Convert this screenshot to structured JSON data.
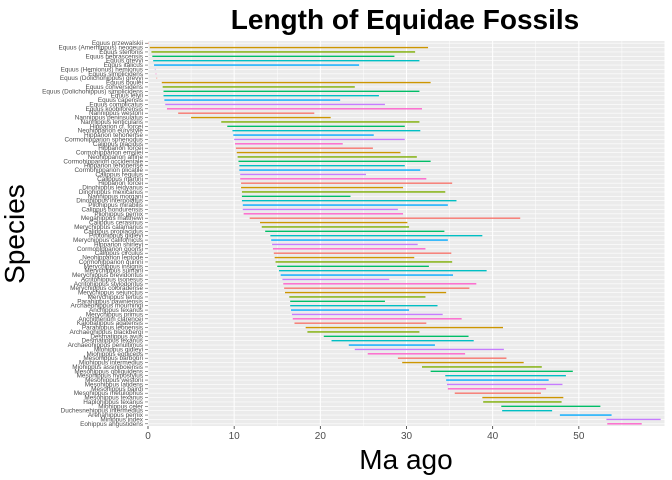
{
  "chart_data": {
    "type": "range",
    "title": "Length of Equidae Fossils",
    "xlabel": "Ma ago",
    "ylabel": "Species",
    "xlim": [
      0,
      60
    ],
    "xticks": [
      0,
      10,
      20,
      30,
      40,
      50
    ],
    "grid": true,
    "legend": "none",
    "species": [
      {
        "label": "Equus przewalskii",
        "start": 0,
        "end": 0
      },
      {
        "label": "Equus (Amerhippus) neogeus",
        "start": 0.2,
        "end": 32.5
      },
      {
        "label": "Equus stenonis",
        "start": 0.4,
        "end": 31
      },
      {
        "label": "Equus nebrascensis",
        "start": 0.5,
        "end": 28.6
      },
      {
        "label": "Equus grevyi",
        "start": 0.6,
        "end": 31.5
      },
      {
        "label": "Equus italicus",
        "start": 0.7,
        "end": 24.5
      },
      {
        "label": "Equus (Hemionus) hemionus",
        "start": 0.8,
        "end": 0.8
      },
      {
        "label": "Equus simplicidens",
        "start": 0.9,
        "end": 0.9
      },
      {
        "label": "Equus (Dolichohippus) grevyi",
        "start": 1,
        "end": 1
      },
      {
        "label": "Equus boulei",
        "start": 1.6,
        "end": 32.8
      },
      {
        "label": "Equus conversidens",
        "start": 1.7,
        "end": 24
      },
      {
        "label": "Equus (Dolichohippus) simplicidens",
        "start": 1.8,
        "end": 31.5
      },
      {
        "label": "Equus lelyii",
        "start": 1.8,
        "end": 26.8
      },
      {
        "label": "Equus capensis",
        "start": 1.9,
        "end": 22.3
      },
      {
        "label": "Equus complicatus",
        "start": 2,
        "end": 27.5
      },
      {
        "label": "Equus koobiforensis",
        "start": 2.2,
        "end": 31.8
      },
      {
        "label": "Nannippus westoni",
        "start": 3.5,
        "end": 19.3
      },
      {
        "label": "Nannippus peninsulatus",
        "start": 5,
        "end": 21.2
      },
      {
        "label": "Nannippus lenticularis",
        "start": 8.5,
        "end": 31.5
      },
      {
        "label": "Hipparion cf. forcei",
        "start": 9.2,
        "end": 29.8
      },
      {
        "label": "Neohipparion eurystyle",
        "start": 9.8,
        "end": 31.6
      },
      {
        "label": "Hipparion tehonense",
        "start": 9.9,
        "end": 26.2
      },
      {
        "label": "Cormohipparion sphenodus",
        "start": 10,
        "end": 29.8
      },
      {
        "label": "Calippus placidus",
        "start": 10.1,
        "end": 22.6
      },
      {
        "label": "Hipparion forcei",
        "start": 10.2,
        "end": 26.1
      },
      {
        "label": "Cormohipparion emsliei",
        "start": 10.3,
        "end": 29.3
      },
      {
        "label": "Neohipparion affine",
        "start": 10.4,
        "end": 31.2
      },
      {
        "label": "Cormohipparion occidentale",
        "start": 10.5,
        "end": 32.8
      },
      {
        "label": "Hipparion tehonense",
        "start": 10.6,
        "end": 29.8
      },
      {
        "label": "Cormohipparion plicatile",
        "start": 10.6,
        "end": 31.6
      },
      {
        "label": "Calippus regulus",
        "start": 10.7,
        "end": 25.3
      },
      {
        "label": "Calippus martini",
        "start": 10.7,
        "end": 32.3
      },
      {
        "label": "Hipparion forcei",
        "start": 10.8,
        "end": 35.3
      },
      {
        "label": "Dinohippus leidyanus",
        "start": 10.8,
        "end": 29.6
      },
      {
        "label": "Dinohippus mexicanus",
        "start": 10.9,
        "end": 34.5
      },
      {
        "label": "Nannippus morgani",
        "start": 10.9,
        "end": 23.5
      },
      {
        "label": "Dinohippus interpolatus",
        "start": 10.9,
        "end": 35.8
      },
      {
        "label": "Pliohippus mirabilis",
        "start": 11,
        "end": 34.8
      },
      {
        "label": "Calippus hondurensis",
        "start": 11,
        "end": 29
      },
      {
        "label": "Pliohippus pernix",
        "start": 11.1,
        "end": 29.6
      },
      {
        "label": "Megahippus matthewi",
        "start": 11.8,
        "end": 43.2
      },
      {
        "label": "Calippus cerasinus",
        "start": 13,
        "end": 30.1
      },
      {
        "label": "Merychippus calamarius",
        "start": 13.2,
        "end": 30.3
      },
      {
        "label": "Calippus proplacidus",
        "start": 13.6,
        "end": 34.4
      },
      {
        "label": "Protohippus gidleyi",
        "start": 14.2,
        "end": 38.8
      },
      {
        "label": "Merychippus californicus",
        "start": 14.3,
        "end": 34.8
      },
      {
        "label": "Hipparion shirleyi",
        "start": 14.4,
        "end": 31.3
      },
      {
        "label": "Cormohipparion goorisi",
        "start": 14.5,
        "end": 32.2
      },
      {
        "label": "Calippus circulus",
        "start": 14.6,
        "end": 35.2
      },
      {
        "label": "Neohipparion leptode",
        "start": 14.7,
        "end": 30.9
      },
      {
        "label": "Cormohipparion quinni",
        "start": 14.8,
        "end": 35.3
      },
      {
        "label": "Merychippus insignis",
        "start": 15,
        "end": 32.6
      },
      {
        "label": "Merychippus sumani",
        "start": 15.2,
        "end": 39.3
      },
      {
        "label": "Merychippus brevidontus",
        "start": 15.4,
        "end": 35.4
      },
      {
        "label": "Acritohippus isonesus",
        "start": 15.6,
        "end": 28
      },
      {
        "label": "Acritohippus stylodontus",
        "start": 15.7,
        "end": 38.1
      },
      {
        "label": "Merychippus coloradense",
        "start": 15.8,
        "end": 37.3
      },
      {
        "label": "Merychippus sejunctus",
        "start": 15.9,
        "end": 34.6
      },
      {
        "label": "Merychippus tertius",
        "start": 16.4,
        "end": 32.2
      },
      {
        "label": "Parahippus pawniensis",
        "start": 16.5,
        "end": 27.5
      },
      {
        "label": "Archaeohippus mourningi",
        "start": 16.5,
        "end": 33.6
      },
      {
        "label": "Anchippus texanus",
        "start": 16.6,
        "end": 30.3
      },
      {
        "label": "Merychippus primus",
        "start": 16.7,
        "end": 34.2
      },
      {
        "label": "Anchitherium clarencei",
        "start": 16.8,
        "end": 36.4
      },
      {
        "label": "Kalobatippus agatensis",
        "start": 17,
        "end": 32.3
      },
      {
        "label": "Parahippus leonensis",
        "start": 18.3,
        "end": 41.2
      },
      {
        "label": "Archaeohippus blackbergi",
        "start": 18.5,
        "end": 31.5
      },
      {
        "label": "Desmatippus avus",
        "start": 20.4,
        "end": 37.2
      },
      {
        "label": "Desmatippus texanus",
        "start": 21.3,
        "end": 37.8
      },
      {
        "label": "Archaeohippus penultimus",
        "start": 23.3,
        "end": 33.3
      },
      {
        "label": "Miohippus gidleyi",
        "start": 24,
        "end": 41.3
      },
      {
        "label": "Miohippus equiceps",
        "start": 25.5,
        "end": 36.8
      },
      {
        "label": "Mesohippus barbouri",
        "start": 29,
        "end": 41.6
      },
      {
        "label": "Miohippus intermedius",
        "start": 29.5,
        "end": 43.6
      },
      {
        "label": "Miohippus assiniboiensis",
        "start": 31.8,
        "end": 45.7
      },
      {
        "label": "Mesohippus obliquidens",
        "start": 32.8,
        "end": 49.3
      },
      {
        "label": "Mesohippus hypostylus",
        "start": 34.5,
        "end": 48.5
      },
      {
        "label": "Mesohippus westoni",
        "start": 34.6,
        "end": 46.5
      },
      {
        "label": "Mesohippus latidens",
        "start": 34.7,
        "end": 48.1
      },
      {
        "label": "Mesohippus bairdi",
        "start": 34.8,
        "end": 46.2
      },
      {
        "label": "Mesohippus metulophus",
        "start": 35.6,
        "end": 45.6
      },
      {
        "label": "Mesohippus texanus",
        "start": 38.8,
        "end": 48.2
      },
      {
        "label": "Haplohippus texanus",
        "start": 38.9,
        "end": 48
      },
      {
        "label": "Miohippus celer",
        "start": 41,
        "end": 52.5
      },
      {
        "label": "Duchesnehippus intermedius",
        "start": 41.1,
        "end": 46.9
      },
      {
        "label": "Arenahippus pernix",
        "start": 47.8,
        "end": 53.8
      },
      {
        "label": "Minippus index",
        "start": 53.2,
        "end": 59.5
      },
      {
        "label": "Eohippus angustidens",
        "start": 53.3,
        "end": 57.3
      }
    ],
    "palette": [
      "#F8766D",
      "#CD9600",
      "#7CAE00",
      "#00BE67",
      "#00BFC4",
      "#00A9FF",
      "#C77CFF",
      "#FF61CC"
    ]
  }
}
